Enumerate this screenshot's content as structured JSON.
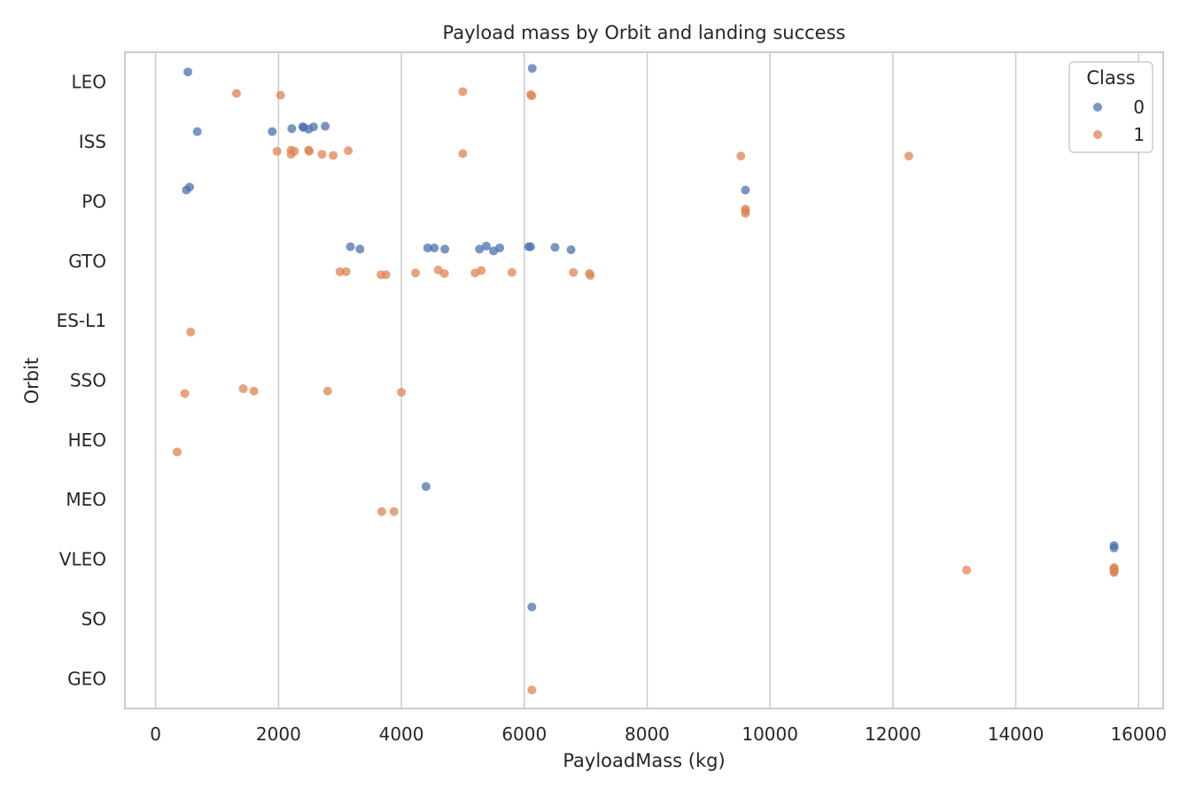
{
  "chart_data": {
    "type": "scatter",
    "title": "Payload mass by Orbit and landing success",
    "xlabel": "PayloadMass (kg)",
    "ylabel": "Orbit",
    "xlim": [
      -500,
      16400
    ],
    "xticks": [
      0,
      2000,
      4000,
      6000,
      8000,
      10000,
      12000,
      14000,
      16000
    ],
    "categories": [
      "LEO",
      "ISS",
      "PO",
      "GTO",
      "ES-L1",
      "SSO",
      "HEO",
      "MEO",
      "VLEO",
      "SO",
      "GEO"
    ],
    "grid": true,
    "legend": {
      "title": "Class",
      "position": "top-right",
      "entries": [
        "0",
        "1"
      ]
    },
    "series": [
      {
        "name": "0",
        "color": "#4c72b0",
        "points": [
          {
            "x": 525,
            "y": "LEO",
            "j": -0.17
          },
          {
            "x": 6130,
            "y": "LEO",
            "j": -0.23
          },
          {
            "x": 677,
            "y": "ISS",
            "j": -0.17
          },
          {
            "x": 1898,
            "y": "ISS",
            "j": -0.17
          },
          {
            "x": 2216,
            "y": "ISS",
            "j": -0.22
          },
          {
            "x": 2395,
            "y": "ISS",
            "j": -0.25
          },
          {
            "x": 2410,
            "y": "ISS",
            "j": -0.24
          },
          {
            "x": 2490,
            "y": "ISS",
            "j": -0.21
          },
          {
            "x": 2570,
            "y": "ISS",
            "j": -0.25
          },
          {
            "x": 2760,
            "y": "ISS",
            "j": -0.26
          },
          {
            "x": 500,
            "y": "PO",
            "j": -0.19
          },
          {
            "x": 553,
            "y": "PO",
            "j": -0.24
          },
          {
            "x": 9600,
            "y": "PO",
            "j": -0.19
          },
          {
            "x": 3170,
            "y": "GTO",
            "j": -0.24
          },
          {
            "x": 3325,
            "y": "GTO",
            "j": -0.2
          },
          {
            "x": 4428,
            "y": "GTO",
            "j": -0.22
          },
          {
            "x": 4535,
            "y": "GTO",
            "j": -0.22
          },
          {
            "x": 4707,
            "y": "GTO",
            "j": -0.2
          },
          {
            "x": 5271,
            "y": "GTO",
            "j": -0.2
          },
          {
            "x": 5383,
            "y": "GTO",
            "j": -0.25
          },
          {
            "x": 5500,
            "y": "GTO",
            "j": -0.17
          },
          {
            "x": 5600,
            "y": "GTO",
            "j": -0.22
          },
          {
            "x": 6070,
            "y": "GTO",
            "j": -0.24
          },
          {
            "x": 6104,
            "y": "GTO",
            "j": -0.24
          },
          {
            "x": 6500,
            "y": "GTO",
            "j": -0.23
          },
          {
            "x": 6761,
            "y": "GTO",
            "j": -0.19
          },
          {
            "x": 4400,
            "y": "MEO",
            "j": -0.22
          },
          {
            "x": 15600,
            "y": "VLEO",
            "j": -0.23
          },
          {
            "x": 15600,
            "y": "VLEO",
            "j": -0.19
          },
          {
            "x": 6123,
            "y": "SO",
            "j": -0.2
          }
        ]
      },
      {
        "name": "1",
        "color": "#dd8452",
        "points": [
          {
            "x": 1316,
            "y": "LEO",
            "j": 0.19
          },
          {
            "x": 2034,
            "y": "LEO",
            "j": 0.22
          },
          {
            "x": 5000,
            "y": "LEO",
            "j": 0.16
          },
          {
            "x": 6104,
            "y": "LEO",
            "j": 0.21
          },
          {
            "x": 6123,
            "y": "LEO",
            "j": 0.23
          },
          {
            "x": 1977,
            "y": "ISS",
            "j": 0.16
          },
          {
            "x": 2205,
            "y": "ISS",
            "j": 0.21
          },
          {
            "x": 2260,
            "y": "ISS",
            "j": 0.16
          },
          {
            "x": 2205,
            "y": "ISS",
            "j": 0.14
          },
          {
            "x": 2490,
            "y": "ISS",
            "j": 0.14
          },
          {
            "x": 2500,
            "y": "ISS",
            "j": 0.16
          },
          {
            "x": 2708,
            "y": "ISS",
            "j": 0.21
          },
          {
            "x": 2890,
            "y": "ISS",
            "j": 0.23
          },
          {
            "x": 3136,
            "y": "ISS",
            "j": 0.15
          },
          {
            "x": 5000,
            "y": "ISS",
            "j": 0.2
          },
          {
            "x": 9525,
            "y": "ISS",
            "j": 0.24
          },
          {
            "x": 12259,
            "y": "ISS",
            "j": 0.24
          },
          {
            "x": 9600,
            "y": "PO",
            "j": 0.13
          },
          {
            "x": 9600,
            "y": "PO",
            "j": 0.16
          },
          {
            "x": 9600,
            "y": "PO",
            "j": 0.2
          },
          {
            "x": 3000,
            "y": "GTO",
            "j": 0.18
          },
          {
            "x": 3100,
            "y": "GTO",
            "j": 0.18
          },
          {
            "x": 3669,
            "y": "GTO",
            "j": 0.23
          },
          {
            "x": 3750,
            "y": "GTO",
            "j": 0.23
          },
          {
            "x": 4230,
            "y": "GTO",
            "j": 0.2
          },
          {
            "x": 4600,
            "y": "GTO",
            "j": 0.15
          },
          {
            "x": 4700,
            "y": "GTO",
            "j": 0.21
          },
          {
            "x": 5200,
            "y": "GTO",
            "j": 0.2
          },
          {
            "x": 5300,
            "y": "GTO",
            "j": 0.16
          },
          {
            "x": 5800,
            "y": "GTO",
            "j": 0.19
          },
          {
            "x": 6800,
            "y": "GTO",
            "j": 0.19
          },
          {
            "x": 7060,
            "y": "GTO",
            "j": 0.21
          },
          {
            "x": 7075,
            "y": "GTO",
            "j": 0.24
          },
          {
            "x": 570,
            "y": "ES-L1",
            "j": 0.19
          },
          {
            "x": 475,
            "y": "SSO",
            "j": 0.22
          },
          {
            "x": 1425,
            "y": "SSO",
            "j": 0.14
          },
          {
            "x": 1600,
            "y": "SSO",
            "j": 0.18
          },
          {
            "x": 2800,
            "y": "SSO",
            "j": 0.18
          },
          {
            "x": 4000,
            "y": "SSO",
            "j": 0.2
          },
          {
            "x": 350,
            "y": "HEO",
            "j": 0.2
          },
          {
            "x": 3681,
            "y": "MEO",
            "j": 0.2
          },
          {
            "x": 3880,
            "y": "MEO",
            "j": 0.2
          },
          {
            "x": 13200,
            "y": "VLEO",
            "j": 0.18
          },
          {
            "x": 15600,
            "y": "VLEO",
            "j": 0.14
          },
          {
            "x": 15600,
            "y": "VLEO",
            "j": 0.16
          },
          {
            "x": 15600,
            "y": "VLEO",
            "j": 0.18
          },
          {
            "x": 15600,
            "y": "VLEO",
            "j": 0.2
          },
          {
            "x": 15600,
            "y": "VLEO",
            "j": 0.22
          },
          {
            "x": 6123,
            "y": "GEO",
            "j": 0.19
          }
        ]
      }
    ]
  }
}
